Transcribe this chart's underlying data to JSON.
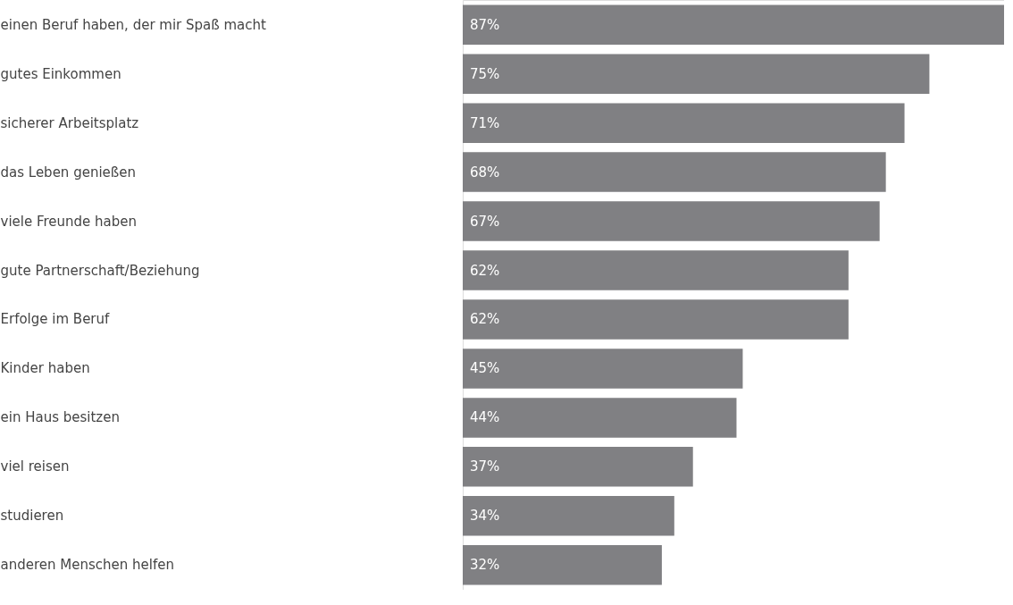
{
  "chart_data": {
    "type": "bar",
    "orientation": "horizontal",
    "color": "#808083",
    "categories": [
      "einen Beruf haben, der mir Spaß macht",
      "gutes Einkommen",
      "sicherer Arbeitsplatz",
      "das Leben genießen",
      "viele Freunde haben",
      "gute Partnerschaft/Beziehung",
      "Erfolge im Beruf",
      "Kinder haben",
      "ein Haus besitzen",
      "viel reisen",
      "studieren",
      "anderen Menschen helfen"
    ],
    "values": [
      87,
      75,
      71,
      68,
      67,
      62,
      62,
      45,
      44,
      37,
      34,
      32
    ],
    "value_labels": [
      "87%",
      "75%",
      "71%",
      "68%",
      "67%",
      "62%",
      "62%",
      "45%",
      "44%",
      "37%",
      "34%",
      "32%"
    ]
  }
}
